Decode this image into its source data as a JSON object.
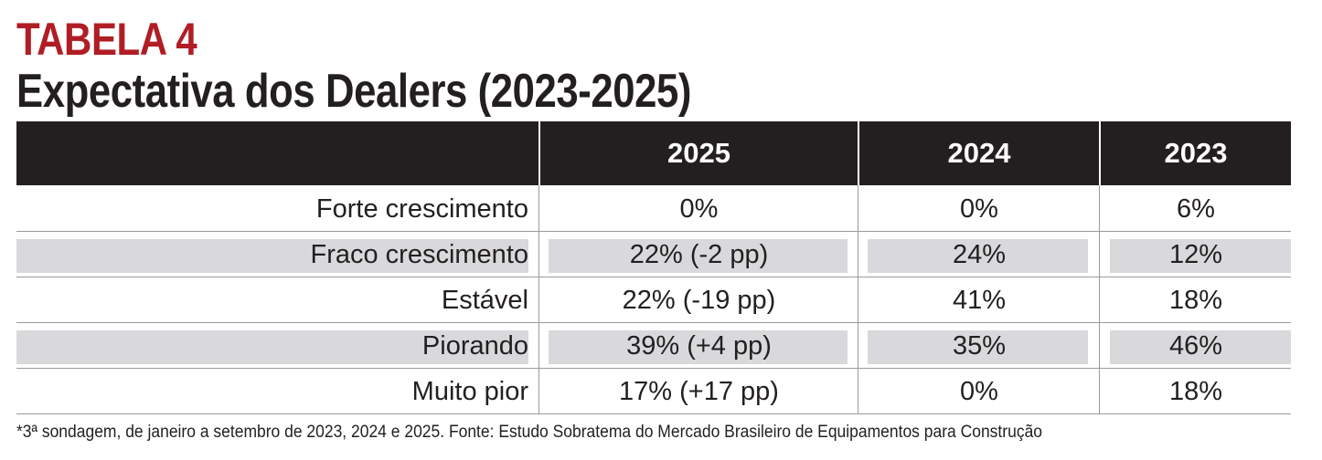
{
  "header": {
    "title": "TABELA 4",
    "subtitle": "Expectativa dos Dealers (2023-2025)"
  },
  "table": {
    "columns": [
      "2025",
      "2024",
      "2023"
    ],
    "rows": [
      [
        "Forte crescimento",
        "0%",
        "0%",
        "6%"
      ],
      [
        "Fraco crescimento",
        "22% (-2 pp)",
        "24%",
        "12%"
      ],
      [
        "Estável",
        "22% (-19 pp)",
        "41%",
        "18%"
      ],
      [
        "Piorando",
        "39% (+4 pp)",
        "35%",
        "46%"
      ],
      [
        "Muito pior",
        "17% (+17 pp)",
        "0%",
        "18%"
      ]
    ]
  },
  "footnote": "*3ª sondagem, de janeiro a setembro de 2023, 2024 e 2025. Fonte: Estudo Sobratema do Mercado Brasileiro de Equipamentos para Construção"
}
